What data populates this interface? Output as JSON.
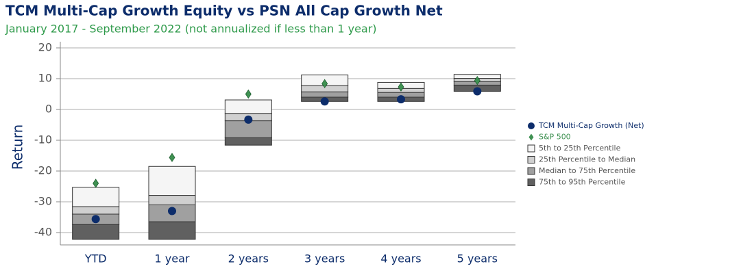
{
  "chart_data": {
    "type": "floating-box",
    "title": "TCM Multi-Cap Growth Equity vs PSN All Cap Growth Net",
    "subtitle": "January 2017 - September 2022 (not annualized if less than 1 year)",
    "y_label": "Return",
    "categories": [
      "YTD",
      "1 year",
      "2 years",
      "3 years",
      "4 years",
      "5 years"
    ],
    "ylim": [
      -44,
      22
    ],
    "yticks": [
      20,
      10,
      0,
      -10,
      -20,
      -30,
      -40
    ],
    "grid": true,
    "percentiles": [
      [
        -25.3,
        -18.5,
        3.1,
        11.2,
        8.8,
        11.4
      ],
      [
        -31.6,
        -27.9,
        -1.3,
        7.7,
        6.8,
        10.1
      ],
      [
        -34,
        -31,
        -3.7,
        5.7,
        5.5,
        9
      ],
      [
        -37.4,
        -36.5,
        -9.2,
        4,
        4,
        7.9
      ],
      [
        -42.2,
        -42.2,
        -11.6,
        2.6,
        2.6,
        5.9
      ]
    ],
    "ranges": [
      {
        "name": "5th to 25th Percentile",
        "color": "#f5f5f5"
      },
      {
        "name": "25th Percentile to Median",
        "color": "#d0d0d0"
      },
      {
        "name": "Median to 75th Percentile",
        "color": "#a0a0a0"
      },
      {
        "name": "75th to 95th Percentile",
        "color": "#606060"
      }
    ],
    "series": [
      {
        "name": "TCM Multi-Cap Growth (Net)",
        "color": "#0d2d6b",
        "marker": "circle",
        "values": [
          -35.6,
          -33,
          -3.3,
          2.6,
          3.3,
          5.9
        ]
      },
      {
        "name": "S&P 500",
        "color": "#3f9152",
        "marker": "diamond",
        "values": [
          -24,
          -15.6,
          5,
          8.4,
          7.3,
          9.4
        ]
      }
    ]
  }
}
